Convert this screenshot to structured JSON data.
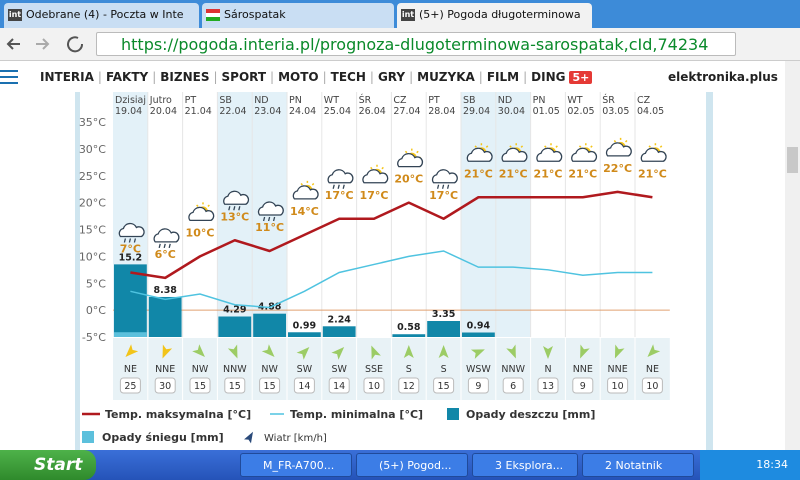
{
  "tabs": [
    "Odebrane (4) - Poczta w Inte",
    "Sárospatak",
    "(5+) Pogoda długoterminowa"
  ],
  "address": "https://pogoda.interia.pl/prognoza-dlugoterminowa-sarospatak,cId,74234",
  "nav": [
    "INTERIA",
    "FAKTY",
    "BIZNES",
    "SPORT",
    "MOTO",
    "TECH",
    "GRY",
    "MUZYKA",
    "FILM",
    "DING"
  ],
  "nav_badge": "5+",
  "brand": "elektronika.plus",
  "chart_data": {
    "type": "weather",
    "day_names": [
      "Dzisiaj",
      "Jutro",
      "PT",
      "SB",
      "ND",
      "PN",
      "WT",
      "ŚR",
      "CZ",
      "PT",
      "SB",
      "ND",
      "PN",
      "WT",
      "ŚR",
      "CZ"
    ],
    "dates": [
      "19.04",
      "20.04",
      "21.04",
      "22.04",
      "23.04",
      "24.04",
      "25.04",
      "26.04",
      "27.04",
      "28.04",
      "29.04",
      "30.04",
      "01.05",
      "02.05",
      "03.05",
      "04.05"
    ],
    "shaded": [
      true,
      false,
      false,
      true,
      true,
      false,
      false,
      false,
      false,
      false,
      true,
      true,
      false,
      false,
      false,
      false
    ],
    "ylim": [
      -5,
      35
    ],
    "yticks": [
      {
        "value": 35,
        "label": "35°C"
      },
      {
        "value": 30,
        "label": "30°C"
      },
      {
        "value": 25,
        "label": "25°C"
      },
      {
        "value": 20,
        "label": "20°C"
      },
      {
        "value": 15,
        "label": "15°C"
      },
      {
        "value": 10,
        "label": "10°C"
      },
      {
        "value": 5,
        "label": "5°C"
      },
      {
        "value": 0,
        "label": "0°C"
      },
      {
        "value": -5,
        "label": "-5°C"
      }
    ],
    "y2lim": [
      0,
      45
    ],
    "series": [
      {
        "name": "Temp. maksymalna [°C]",
        "color": "#b0191e",
        "values": [
          7,
          6,
          10,
          13,
          11,
          14,
          17,
          17,
          20,
          17,
          21,
          21,
          21,
          21,
          22,
          21
        ],
        "value_labels": [
          "7°C",
          "6°C",
          "10°C",
          "13°C",
          "11°C",
          "14°C",
          "17°C",
          "17°C",
          "20°C",
          "17°C",
          "21°C",
          "21°C",
          "21°C",
          "21°C",
          "22°C",
          "21°C"
        ]
      },
      {
        "name": "Temp. minimalna [°C]",
        "color": "#4fc3e0",
        "values": [
          3.5,
          2,
          3,
          1,
          0.5,
          3.5,
          7,
          8.5,
          10,
          11,
          8,
          8,
          7.5,
          6.5,
          7,
          7
        ]
      },
      {
        "name": "Opady deszczu [mm]",
        "color": "#1187a8",
        "axis": "y2",
        "values": [
          15.2,
          8.38,
          null,
          4.29,
          4.88,
          0.99,
          2.24,
          null,
          0.58,
          3.35,
          0.94,
          null,
          null,
          null,
          null,
          null
        ]
      },
      {
        "name": "Opady śniegu [mm]",
        "color": "#5cc0dc",
        "axis": "y2",
        "values": [
          1,
          null,
          null,
          null,
          null,
          null,
          null,
          null,
          null,
          null,
          null,
          null,
          null,
          null,
          null,
          null
        ]
      }
    ],
    "wind": {
      "name": "Wiatr [km/h]",
      "directions": [
        "NE",
        "NNE",
        "NW",
        "NNW",
        "NW",
        "SW",
        "SW",
        "SSE",
        "S",
        "S",
        "WSW",
        "NNW",
        "N",
        "NNE",
        "NNE",
        "NE"
      ],
      "speeds": [
        25,
        30,
        15,
        15,
        15,
        14,
        14,
        10,
        12,
        15,
        9,
        6,
        13,
        9,
        10,
        10
      ]
    }
  },
  "taskbar": {
    "start": "Start",
    "items": [
      "M_FR-A700...",
      "(5+) Pogod...",
      "3 Eksplora...",
      "2 Notatnik"
    ],
    "clock": "18:34"
  }
}
